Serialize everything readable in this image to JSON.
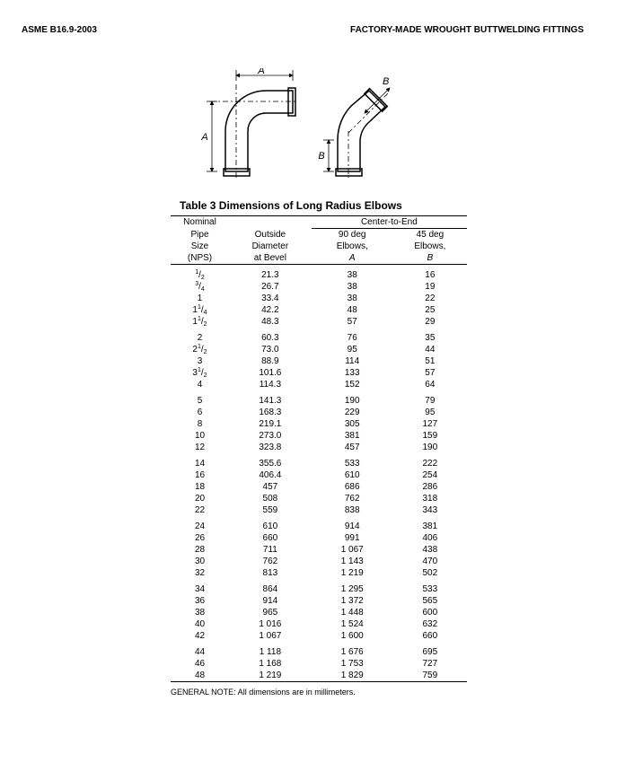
{
  "header": {
    "left": "ASME B16.9-2003",
    "right": "FACTORY-MADE WROUGHT BUTTWELDING FITTINGS"
  },
  "diagram": {
    "labelA": "A",
    "labelB": "B",
    "stroke": "#000000",
    "fill": "#ffffff"
  },
  "table": {
    "title": "Table 3   Dimensions of Long Radius Elbows",
    "col_nominal_l1": "Nominal",
    "col_nominal_l2": "Pipe",
    "col_nominal_l3": "Size",
    "col_nominal_l4": "(NPS)",
    "col_od_l1": "Outside",
    "col_od_l2": "Diameter",
    "col_od_l3": "at Bevel",
    "col_cte": "Center-to-End",
    "col_90_l1": "90 deg",
    "col_90_l2": "Elbows,",
    "col_90_l3": "A",
    "col_45_l1": "45 deg",
    "col_45_l2": "Elbows,",
    "col_45_l3": "B",
    "groups": [
      [
        {
          "nps": "½",
          "nps_html": "<span class='frac'><sup>1</sup>/<sub>2</sub></span>",
          "od": "21.3",
          "a": "38",
          "b": "16"
        },
        {
          "nps": "¾",
          "nps_html": "<span class='frac'><sup>3</sup>/<sub>4</sub></span>",
          "od": "26.7",
          "a": "38",
          "b": "19"
        },
        {
          "nps": "1",
          "od": "33.4",
          "a": "38",
          "b": "22"
        },
        {
          "nps": "1¼",
          "nps_html": "1<span class='frac'><sup>1</sup>/<sub>4</sub></span>",
          "od": "42.2",
          "a": "48",
          "b": "25"
        },
        {
          "nps": "1½",
          "nps_html": "1<span class='frac'><sup>1</sup>/<sub>2</sub></span>",
          "od": "48.3",
          "a": "57",
          "b": "29"
        }
      ],
      [
        {
          "nps": "2",
          "od": "60.3",
          "a": "76",
          "b": "35"
        },
        {
          "nps": "2½",
          "nps_html": "2<span class='frac'><sup>1</sup>/<sub>2</sub></span>",
          "od": "73.0",
          "a": "95",
          "b": "44"
        },
        {
          "nps": "3",
          "od": "88.9",
          "a": "114",
          "b": "51"
        },
        {
          "nps": "3½",
          "nps_html": "3<span class='frac'><sup>1</sup>/<sub>2</sub></span>",
          "od": "101.6",
          "a": "133",
          "b": "57"
        },
        {
          "nps": "4",
          "od": "114.3",
          "a": "152",
          "b": "64"
        }
      ],
      [
        {
          "nps": "5",
          "od": "141.3",
          "a": "190",
          "b": "79"
        },
        {
          "nps": "6",
          "od": "168.3",
          "a": "229",
          "b": "95"
        },
        {
          "nps": "8",
          "od": "219.1",
          "a": "305",
          "b": "127"
        },
        {
          "nps": "10",
          "od": "273.0",
          "a": "381",
          "b": "159"
        },
        {
          "nps": "12",
          "od": "323.8",
          "a": "457",
          "b": "190"
        }
      ],
      [
        {
          "nps": "14",
          "od": "355.6",
          "a": "533",
          "b": "222"
        },
        {
          "nps": "16",
          "od": "406.4",
          "a": "610",
          "b": "254"
        },
        {
          "nps": "18",
          "od": "457",
          "a": "686",
          "b": "286"
        },
        {
          "nps": "20",
          "od": "508",
          "a": "762",
          "b": "318"
        },
        {
          "nps": "22",
          "od": "559",
          "a": "838",
          "b": "343"
        }
      ],
      [
        {
          "nps": "24",
          "od": "610",
          "a": "914",
          "b": "381"
        },
        {
          "nps": "26",
          "od": "660",
          "a": "991",
          "b": "406"
        },
        {
          "nps": "28",
          "od": "711",
          "a": "1 067",
          "b": "438"
        },
        {
          "nps": "30",
          "od": "762",
          "a": "1 143",
          "b": "470"
        },
        {
          "nps": "32",
          "od": "813",
          "a": "1 219",
          "b": "502"
        }
      ],
      [
        {
          "nps": "34",
          "od": "864",
          "a": "1 295",
          "b": "533"
        },
        {
          "nps": "36",
          "od": "914",
          "a": "1 372",
          "b": "565"
        },
        {
          "nps": "38",
          "od": "965",
          "a": "1 448",
          "b": "600"
        },
        {
          "nps": "40",
          "od": "1 016",
          "a": "1 524",
          "b": "632"
        },
        {
          "nps": "42",
          "od": "1 067",
          "a": "1 600",
          "b": "660"
        }
      ],
      [
        {
          "nps": "44",
          "od": "1 118",
          "a": "1 676",
          "b": "695"
        },
        {
          "nps": "46",
          "od": "1 168",
          "a": "1 753",
          "b": "727"
        },
        {
          "nps": "48",
          "od": "1 219",
          "a": "1 829",
          "b": "759"
        }
      ]
    ],
    "footnote": "GENERAL NOTE:  All dimensions are in millimeters."
  }
}
